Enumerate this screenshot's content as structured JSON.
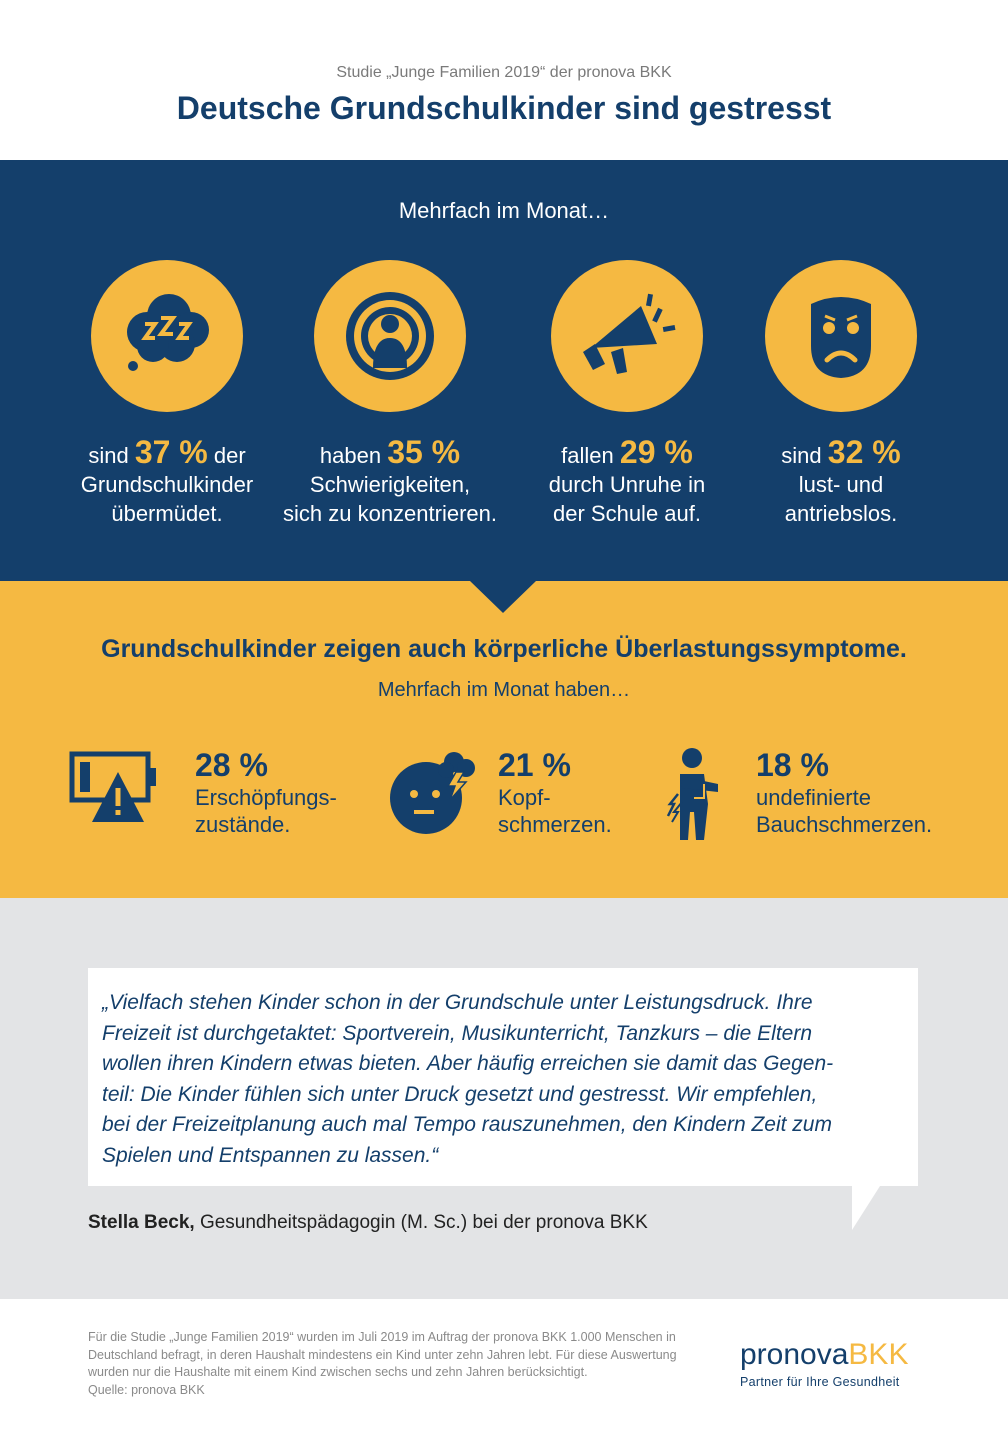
{
  "header": {
    "kicker": "Studie „Junge Familien 2019“ der pronova BKK",
    "title": "Deutsche Grundschulkinder sind gestresst"
  },
  "monthly": {
    "subtitle": "Mehrfach im Monat…",
    "stats": [
      {
        "icon": "sleep-cloud-icon",
        "pre": "sind",
        "pct": "37 %",
        "post": "der",
        "line2": "Grundschulkinder",
        "line3": "übermüdet."
      },
      {
        "icon": "focus-person-icon",
        "pre": "haben",
        "pct": "35 %",
        "post": "",
        "line2": "Schwierigkeiten,",
        "line3": "sich zu konzentrieren."
      },
      {
        "icon": "megaphone-icon",
        "pre": "fallen",
        "pct": "29 %",
        "post": "",
        "line2": "durch Unruhe in",
        "line3": "der Schule auf."
      },
      {
        "icon": "sad-mask-icon",
        "pre": "sind",
        "pct": "32 %",
        "post": "",
        "line2": "lust- und",
        "line3": "antriebslos."
      }
    ]
  },
  "physical": {
    "title": "Grundschulkinder zeigen auch körperliche Überlastungssymptome.",
    "subtitle": "Mehrfach im Monat haben…",
    "items": [
      {
        "icon": "low-battery-warning-icon",
        "pct": "28 %",
        "line1": "Erschöpfungs-",
        "line2": "zustände."
      },
      {
        "icon": "headache-face-icon",
        "pct": "21 %",
        "line1": "Kopf-",
        "line2": "schmerzen."
      },
      {
        "icon": "stomachache-person-icon",
        "pct": "18 %",
        "line1": "undefinierte",
        "line2": "Bauchschmerzen."
      }
    ]
  },
  "quote": {
    "lines": [
      "„Vielfach stehen Kinder schon in der Grundschule unter Leistungsdruck. Ihre",
      "Freizeit ist durchgetaktet: Sportverein, Musikunterricht, Tanzkurs – die Eltern",
      "wollen ihren Kindern etwas bieten. Aber häufig erreichen sie damit das Gegen-",
      "teil: Die Kinder fühlen sich unter Druck gesetzt und gestresst. Wir empfehlen,",
      "bei der Freizeitplanung auch mal Tempo rauszunehmen, den Kindern Zeit zum",
      "Spielen und Entspannen zu lassen.“"
    ],
    "author_name": "Stella Beck,",
    "author_role": "Gesundheitspädagogin (M. Sc.) bei der pronova BKK"
  },
  "footer": {
    "note_lines": [
      "Für die Studie „Junge Familien 2019“ wurden im Juli 2019 im Auftrag der pronova BKK 1.000 Menschen in",
      "Deutschland befragt, in deren Haushalt mindestens ein Kind unter zehn Jahren lebt. Für diese Auswertung",
      "wurden nur die Haushalte mit einem Kind zwischen sechs und zehn Jahren berücksichtigt.",
      "Quelle: pronova BKK"
    ],
    "logo_part1": "pronova",
    "logo_part2": "BKK",
    "logo_tagline": "Partner für Ihre Gesundheit"
  },
  "colors": {
    "navy": "#143f6b",
    "yellow": "#f5b942",
    "grey": "#e3e4e6"
  }
}
